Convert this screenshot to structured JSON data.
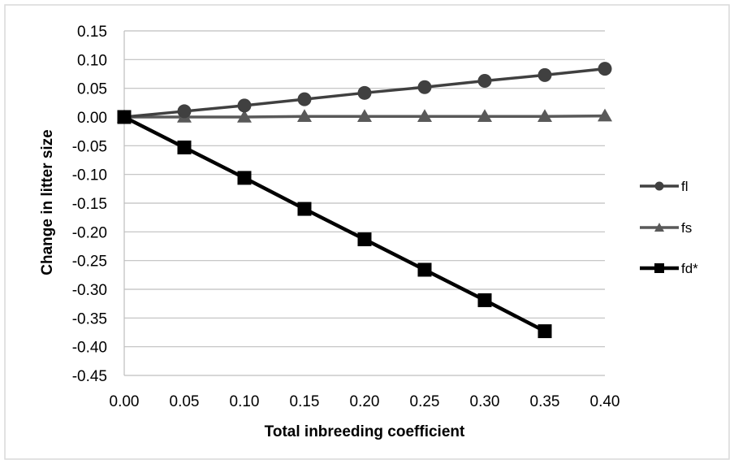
{
  "chart_data": {
    "type": "line",
    "xlabel": "Total inbreeding coefficient",
    "ylabel": "Change in litter size",
    "xlim": [
      0,
      0.4
    ],
    "ylim": [
      -0.45,
      0.15
    ],
    "x_ticks": [
      "0.00",
      "0.05",
      "0.10",
      "0.15",
      "0.20",
      "0.25",
      "0.30",
      "0.35",
      "0.40"
    ],
    "y_ticks": [
      "0.15",
      "0.10",
      "0.05",
      "0.00",
      "-0.05",
      "-0.10",
      "-0.15",
      "-0.20",
      "-0.25",
      "-0.30",
      "-0.35",
      "-0.40",
      "-0.45"
    ],
    "grid": "horizontal",
    "legend_position": "right",
    "series": [
      {
        "name": "fl",
        "marker": "circle",
        "color": "#404040",
        "x": [
          0,
          0.05,
          0.1,
          0.15,
          0.2,
          0.25,
          0.3,
          0.35,
          0.4
        ],
        "values": [
          0,
          0.01,
          0.02,
          0.031,
          0.042,
          0.052,
          0.063,
          0.073,
          0.084
        ]
      },
      {
        "name": "fs",
        "marker": "triangle",
        "color": "#595959",
        "x": [
          0,
          0.05,
          0.1,
          0.15,
          0.2,
          0.25,
          0.3,
          0.35,
          0.4
        ],
        "values": [
          0,
          0.0,
          0.0,
          0.001,
          0.001,
          0.001,
          0.001,
          0.001,
          0.002
        ]
      },
      {
        "name": "fd*",
        "marker": "square",
        "color": "#000000",
        "x": [
          0,
          0.05,
          0.1,
          0.15,
          0.2,
          0.25,
          0.3,
          0.35
        ],
        "values": [
          0,
          -0.053,
          -0.106,
          -0.16,
          -0.213,
          -0.266,
          -0.319,
          -0.373
        ]
      }
    ]
  }
}
